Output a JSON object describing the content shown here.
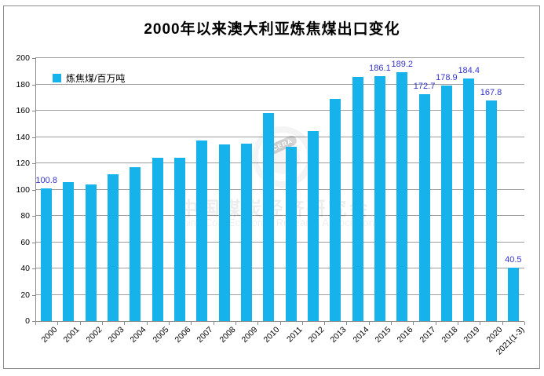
{
  "title": "2000年以来澳大利亚炼焦煤出口变化",
  "legend": {
    "label": "炼焦煤/百万吨"
  },
  "watermark": {
    "cn": "中国煤炭经济研究会",
    "en": "China Coal Economic Research Association",
    "badge": "CERA"
  },
  "colors": {
    "bar": "#16b2ec",
    "data_label": "#3333cc",
    "gridline": "#9e9e9e",
    "axis": "#8a8a8a",
    "tick_text": "#000000",
    "frame_border": "#8c8c8c",
    "background": "#ffffff"
  },
  "chart_data": {
    "type": "bar",
    "title": "2000年以来澳大利亚炼焦煤出口变化",
    "series_name": "炼焦煤/百万吨",
    "categories": [
      "2000",
      "2001",
      "2002",
      "2003",
      "2004",
      "2005",
      "2006",
      "2007",
      "2008",
      "2009",
      "2010",
      "2011",
      "2012",
      "2013",
      "2014",
      "2015",
      "2016",
      "2017",
      "2018",
      "2019",
      "2020",
      "2021(1-3)"
    ],
    "values": [
      100.8,
      105.8,
      104.0,
      111.4,
      116.9,
      124.3,
      123.9,
      137.6,
      134.2,
      134.8,
      158.0,
      132.7,
      144.7,
      169.2,
      185.9,
      186.1,
      189.2,
      172.7,
      178.9,
      184.4,
      167.8,
      40.5
    ],
    "data_labels": [
      "100.8",
      null,
      null,
      null,
      null,
      null,
      null,
      null,
      null,
      null,
      null,
      null,
      null,
      null,
      null,
      "186.1",
      "189.2",
      "172.7",
      "178.9",
      "184.4",
      "167.8",
      "40.5"
    ],
    "xlabel": "",
    "ylabel": "",
    "ylim": [
      0,
      200
    ],
    "ytick_step": 20,
    "yticks": [
      0,
      20,
      40,
      60,
      80,
      100,
      120,
      140,
      160,
      180,
      200
    ],
    "grid": true,
    "legend_position": "inside-top-left",
    "x_label_rotation_deg": -45
  }
}
